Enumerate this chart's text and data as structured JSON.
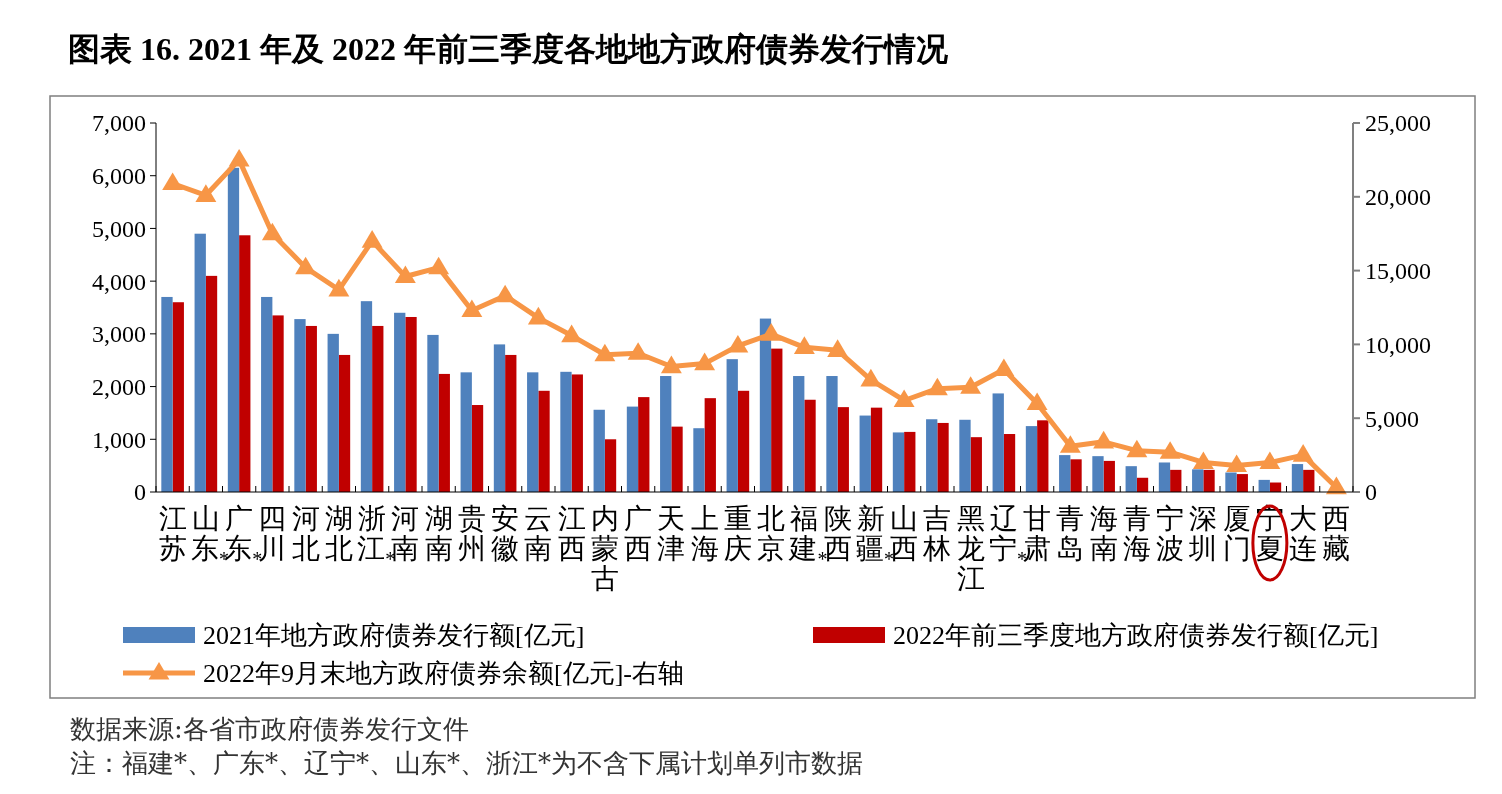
{
  "chart_data": {
    "type": "bar",
    "title": "图表 16. 2021 年及 2022 年前三季度各地地方政府债券发行情况",
    "categories": [
      "江苏",
      "山东$_{*}$",
      "广东$_{*}$",
      "四川",
      "河北",
      "湖北",
      "浙江$_{*}$",
      "河南",
      "湖南",
      "贵州",
      "安徽",
      "云南",
      "江西",
      "内蒙古",
      "广西",
      "天津",
      "上海",
      "重庆",
      "北京",
      "福建$_{*}$",
      "陕西",
      "新疆$_{*}$",
      "山西",
      "吉林",
      "黑龙江",
      "辽宁$_{*}$",
      "甘肃",
      "青岛",
      "海南",
      "青海",
      "宁波",
      "深圳",
      "厦门",
      "宁夏",
      "大连",
      "西藏"
    ],
    "series": [
      {
        "name": "2021年地方政府债券发行额[亿元]",
        "color": "#4f81bd",
        "values": [
          3700,
          4900,
          6150,
          3700,
          3280,
          3000,
          3620,
          3400,
          2980,
          2270,
          2800,
          2270,
          2280,
          1560,
          1620,
          2200,
          1210,
          2520,
          3290,
          2200,
          2200,
          1450,
          1130,
          1380,
          1370,
          1870,
          1250,
          700,
          680,
          490,
          560,
          430,
          370,
          230,
          530,
          null
        ]
      },
      {
        "name": "2022年前三季度地方政府债券发行额[亿元]",
        "color": "#c00000",
        "values": [
          3600,
          4100,
          4870,
          3350,
          3150,
          2600,
          3150,
          3320,
          2240,
          1650,
          2600,
          1920,
          2230,
          1000,
          1800,
          1240,
          1780,
          1920,
          2720,
          1750,
          1610,
          1600,
          1140,
          1310,
          1040,
          1100,
          1360,
          620,
          590,
          270,
          420,
          420,
          340,
          180,
          420,
          null
        ]
      },
      {
        "name": "2022年9月末地方政府债券余额[亿元]-右轴",
        "color": "#f79646",
        "type": "line",
        "axis": "y2",
        "marker": "triangle",
        "values": [
          20900,
          20100,
          22500,
          17500,
          15200,
          13700,
          17000,
          14600,
          15200,
          12300,
          13300,
          11800,
          10600,
          9300,
          9400,
          8500,
          8700,
          9900,
          10700,
          9800,
          9600,
          7600,
          6200,
          7000,
          7100,
          8300,
          6000,
          3100,
          3400,
          2800,
          2700,
          2000,
          1800,
          2000,
          2500,
          300
        ]
      }
    ],
    "ylim": [
      0,
      7000
    ],
    "yticks": [
      0,
      {
        "value": 1000,
        "label": "1,000"
      },
      {
        "value": 2000,
        "label": "2,000"
      },
      {
        "value": 3000,
        "label": "3,000"
      },
      {
        "value": 4000,
        "label": "4,000"
      },
      {
        "value": 5000,
        "label": "5,000"
      },
      {
        "value": 6000,
        "label": "6,000"
      },
      {
        "value": 7000,
        "label": "7,000"
      }
    ],
    "y2lim": [
      0,
      25000
    ],
    "y2ticks": [
      0,
      {
        "value": 5000,
        "label": "5,000"
      },
      {
        "value": 10000,
        "label": "10,000"
      },
      {
        "value": 15000,
        "label": "15,000"
      },
      {
        "value": 20000,
        "label": "20,000"
      },
      {
        "value": 25000,
        "label": "25,000"
      }
    ],
    "grid": false,
    "legend": "bottom",
    "annotations": [
      "数据来源:各省市政府债券发行文件",
      "注：福建*、广东*、辽宁*、山东*、浙江*为不含下属计划单列市数据"
    ]
  }
}
